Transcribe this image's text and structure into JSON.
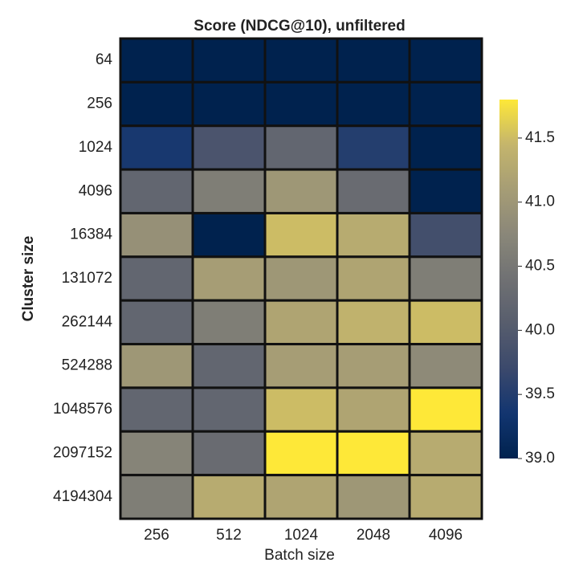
{
  "chart_data": {
    "type": "heatmap",
    "title": "Score (NDCG@10), unfiltered",
    "x_label": "Batch size",
    "y_label": "Cluster size",
    "categories": [
      "256",
      "512",
      "1024",
      "2048",
      "4096"
    ],
    "y_categories": [
      "64",
      "256",
      "1024",
      "4096",
      "16384",
      "131072",
      "262144",
      "524288",
      "1048576",
      "2097152",
      "4194304"
    ],
    "values": [
      [
        39.0,
        39.0,
        39.0,
        39.0,
        39.0
      ],
      [
        39.0,
        39.0,
        39.0,
        39.0,
        39.0
      ],
      [
        39.4,
        39.9,
        40.2,
        39.5,
        39.0
      ],
      [
        40.2,
        40.6,
        41.0,
        40.3,
        39.0
      ],
      [
        40.9,
        39.0,
        41.5,
        41.3,
        39.8
      ],
      [
        40.2,
        41.1,
        41.0,
        41.2,
        40.6
      ],
      [
        40.2,
        40.6,
        41.2,
        41.4,
        41.5
      ],
      [
        41.0,
        40.2,
        41.1,
        41.1,
        40.8
      ],
      [
        40.2,
        40.2,
        41.5,
        41.2,
        41.8
      ],
      [
        40.7,
        40.3,
        41.8,
        41.8,
        41.3
      ],
      [
        40.6,
        41.3,
        41.2,
        41.0,
        41.3
      ]
    ],
    "colormap": "cividis",
    "zlim": [
      39.0,
      41.8
    ],
    "zticks": [
      {
        "value": 39.0,
        "label": "39.0"
      },
      39.5,
      {
        "value": 40.0,
        "label": "40.0"
      },
      40.5,
      {
        "value": 41.0,
        "label": "41.0"
      },
      41.5
    ]
  }
}
